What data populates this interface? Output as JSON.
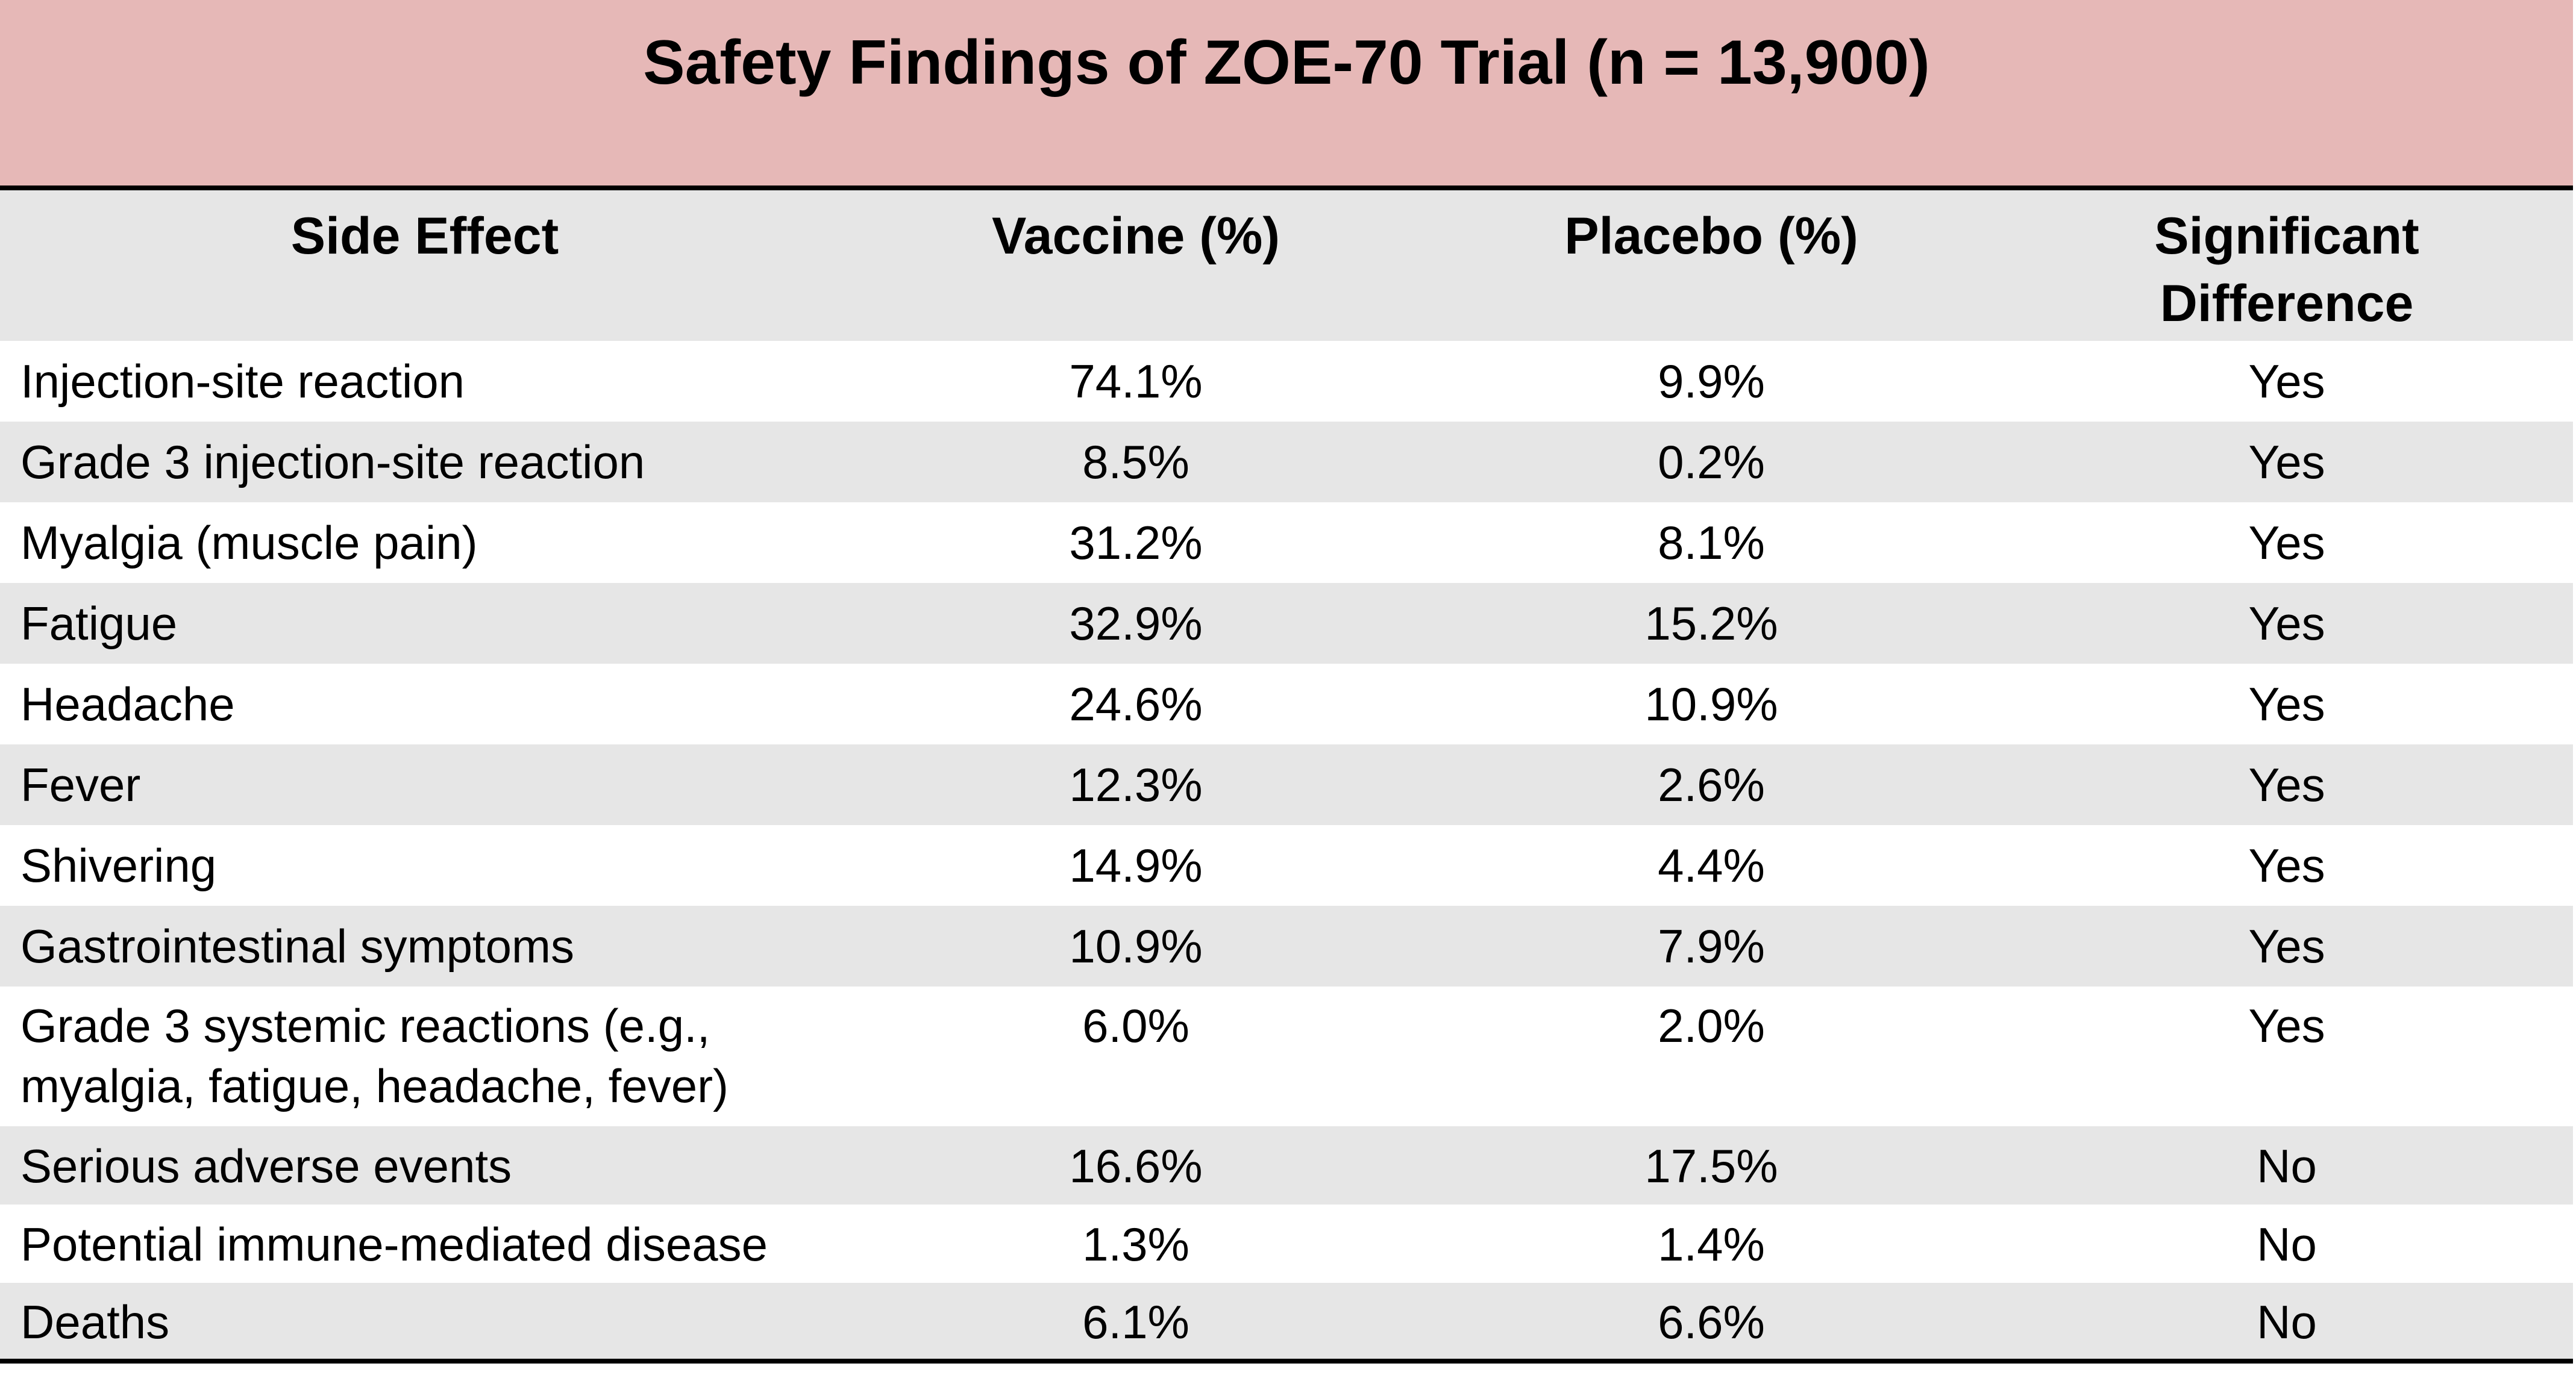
{
  "title": "Safety Findings of ZOE-70 Trial (n = 13,900)",
  "colors": {
    "title_background": "#e6b8b7",
    "stripe_gray": "#e6e6e6",
    "rule": "#000000"
  },
  "columns": [
    {
      "label": "Side Effect"
    },
    {
      "label": "Vaccine (%)"
    },
    {
      "label": "Placebo (%)"
    },
    {
      "label_line1": "Significant",
      "label_line2": "Difference"
    }
  ],
  "rows": [
    {
      "side_effect": "Injection-site reaction",
      "vaccine": "74.1%",
      "placebo": "9.9%",
      "significant": "Yes"
    },
    {
      "side_effect": "Grade 3 injection-site reaction",
      "vaccine": "8.5%",
      "placebo": "0.2%",
      "significant": "Yes"
    },
    {
      "side_effect": "Myalgia (muscle pain)",
      "vaccine": "31.2%",
      "placebo": "8.1%",
      "significant": "Yes"
    },
    {
      "side_effect": "Fatigue",
      "vaccine": "32.9%",
      "placebo": "15.2%",
      "significant": "Yes"
    },
    {
      "side_effect": "Headache",
      "vaccine": "24.6%",
      "placebo": "10.9%",
      "significant": "Yes"
    },
    {
      "side_effect": "Fever",
      "vaccine": "12.3%",
      "placebo": "2.6%",
      "significant": "Yes"
    },
    {
      "side_effect": "Shivering",
      "vaccine": "14.9%",
      "placebo": "4.4%",
      "significant": "Yes"
    },
    {
      "side_effect": "Gastrointestinal symptoms",
      "vaccine": "10.9%",
      "placebo": "7.9%",
      "significant": "Yes"
    },
    {
      "side_effect_line1": "Grade 3 systemic reactions (e.g.,",
      "side_effect_line2": "myalgia, fatigue, headache, fever)",
      "vaccine": "6.0%",
      "placebo": "2.0%",
      "significant": "Yes"
    },
    {
      "side_effect": "Serious adverse events",
      "vaccine": "16.6%",
      "placebo": "17.5%",
      "significant": "No"
    },
    {
      "side_effect": "Potential immune-mediated disease",
      "vaccine": "1.3%",
      "placebo": "1.4%",
      "significant": "No"
    },
    {
      "side_effect": "Deaths",
      "vaccine": "6.1%",
      "placebo": "6.6%",
      "significant": "No"
    }
  ]
}
